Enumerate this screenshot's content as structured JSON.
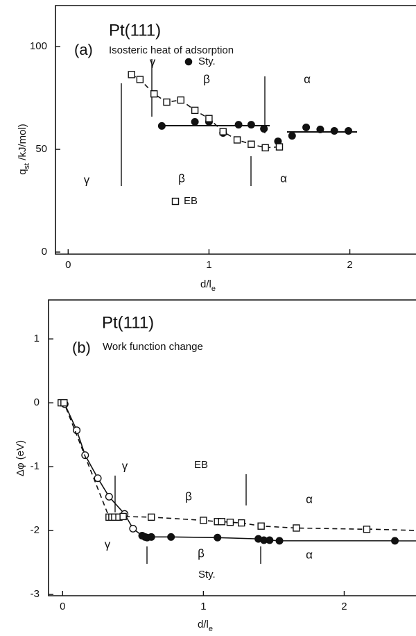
{
  "chart_data": [
    {
      "type": "scatter",
      "title": "Pt(111)",
      "panel_label": "(a)",
      "subtitle": "Isosteric heat of adsorption",
      "xlabel": [
        "d/l",
        "e"
      ],
      "ylabel": [
        "q",
        "st",
        " /kJ/mol)"
      ],
      "xlim": [
        -0.09,
        2.46
      ],
      "ylim": [
        -1,
        120
      ],
      "xticks": [
        0,
        1,
        2
      ],
      "yticks": [
        0,
        50,
        100
      ],
      "series": [
        {
          "name": "Sty.",
          "color": "#111111",
          "marker": "circle",
          "line": "none",
          "x": [
            0.665,
            0.9,
            1.0,
            1.1,
            1.21,
            1.3,
            1.39,
            1.49,
            1.59,
            1.69,
            1.79,
            1.89,
            1.99
          ],
          "values": [
            61.4,
            63.4,
            63.4,
            58,
            62,
            62,
            60,
            53.9,
            56.6,
            60.7,
            59.7,
            59,
            59
          ]
        },
        {
          "name": "EB",
          "color": "#111111",
          "marker": "square-open",
          "line": "dashed",
          "x": [
            0.45,
            0.51,
            0.61,
            0.7,
            0.8,
            0.9,
            1.0,
            1.1,
            1.2,
            1.3,
            1.4,
            1.5
          ],
          "values": [
            86.4,
            84,
            77,
            73,
            74,
            69,
            65,
            58.6,
            54.6,
            52.5,
            50.8,
            51.2
          ]
        }
      ],
      "annotations": [
        "γ",
        "β",
        "α",
        "γ",
        "β",
        "α"
      ]
    },
    {
      "type": "line",
      "title": "Pt(111)",
      "panel_label": "(b)",
      "subtitle": "Work function change",
      "xlabel": [
        "d/l",
        "e"
      ],
      "ylabel": "Δφ (eV)",
      "xlim": [
        -0.1,
        2.5
      ],
      "ylim": [
        -3.02,
        1.61
      ],
      "xticks": [
        0,
        1,
        2
      ],
      "yticks": [
        -3,
        -2,
        -1,
        0,
        1
      ],
      "series": [
        {
          "name": "Sty.",
          "color": "#111111",
          "line": "solid",
          "marker": [
            "circle-open",
            "circle-open",
            "circle-open",
            "circle-open",
            "circle-open",
            "circle-open",
            "circle-open",
            "circle",
            "circle",
            "circle",
            "circle",
            "circle",
            "circle",
            "circle",
            "circle",
            "circle",
            "circle",
            "circle"
          ],
          "x": [
            0.015,
            0.1,
            0.16,
            0.25,
            0.33,
            0.44,
            0.5,
            0.565,
            0.585,
            0.6,
            0.63,
            0.77,
            1.1,
            1.39,
            1.43,
            1.47,
            1.54,
            2.36
          ],
          "values": [
            -0.02,
            -0.43,
            -0.82,
            -1.18,
            -1.47,
            -1.74,
            -1.97,
            -2.08,
            -2.1,
            -2.11,
            -2.1,
            -2.1,
            -2.11,
            -2.13,
            -2.15,
            -2.15,
            -2.16,
            -2.16
          ]
        },
        {
          "name": "EB",
          "color": "#111111",
          "line": "dashed",
          "marker": "square-open",
          "x": [
            -0.01,
            0.01,
            0.33,
            0.35,
            0.37,
            0.4,
            0.43,
            0.63,
            1.0,
            1.1,
            1.13,
            1.19,
            1.27,
            1.41,
            1.66,
            2.16
          ],
          "values": [
            0,
            0,
            -1.79,
            -1.79,
            -1.79,
            -1.79,
            -1.78,
            -1.79,
            -1.84,
            -1.86,
            -1.86,
            -1.87,
            -1.88,
            -1.93,
            -1.96,
            -1.98
          ]
        }
      ],
      "annotations": [
        "γ",
        "β",
        "α",
        "γ",
        "β",
        "α"
      ]
    }
  ]
}
